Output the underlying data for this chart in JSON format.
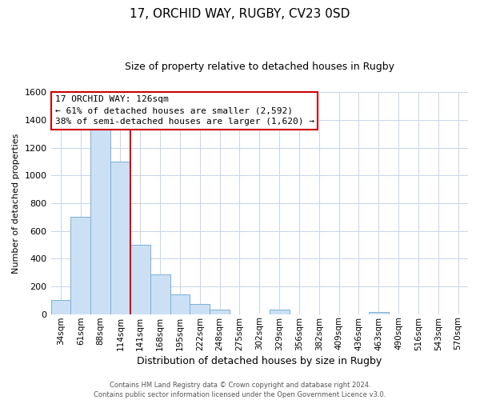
{
  "title": "17, ORCHID WAY, RUGBY, CV23 0SD",
  "subtitle": "Size of property relative to detached houses in Rugby",
  "xlabel": "Distribution of detached houses by size in Rugby",
  "ylabel": "Number of detached properties",
  "bar_labels": [
    "34sqm",
    "61sqm",
    "88sqm",
    "114sqm",
    "141sqm",
    "168sqm",
    "195sqm",
    "222sqm",
    "248sqm",
    "275sqm",
    "302sqm",
    "329sqm",
    "356sqm",
    "382sqm",
    "409sqm",
    "436sqm",
    "463sqm",
    "490sqm",
    "516sqm",
    "543sqm",
    "570sqm"
  ],
  "bar_values": [
    100,
    700,
    1340,
    1100,
    500,
    285,
    140,
    75,
    30,
    0,
    0,
    35,
    0,
    0,
    0,
    0,
    15,
    0,
    0,
    0,
    0
  ],
  "bar_color": "#cce0f5",
  "bar_edge_color": "#7aafd4",
  "property_line_color": "#cc0000",
  "property_line_index": 3,
  "ylim": [
    0,
    1600
  ],
  "yticks": [
    0,
    200,
    400,
    600,
    800,
    1000,
    1200,
    1400,
    1600
  ],
  "annotation_title": "17 ORCHID WAY: 126sqm",
  "annotation_line1": "← 61% of detached houses are smaller (2,592)",
  "annotation_line2": "38% of semi-detached houses are larger (1,620) →",
  "annotation_box_facecolor": "#ffffff",
  "annotation_box_edgecolor": "#cc0000",
  "footer_line1": "Contains HM Land Registry data © Crown copyright and database right 2024.",
  "footer_line2": "Contains public sector information licensed under the Open Government Licence v3.0.",
  "background_color": "#ffffff",
  "grid_color": "#c8d4e8",
  "title_fontsize": 11,
  "subtitle_fontsize": 9,
  "ylabel_fontsize": 8,
  "xlabel_fontsize": 9,
  "tick_fontsize": 8,
  "ann_fontsize": 8,
  "footer_fontsize": 6
}
